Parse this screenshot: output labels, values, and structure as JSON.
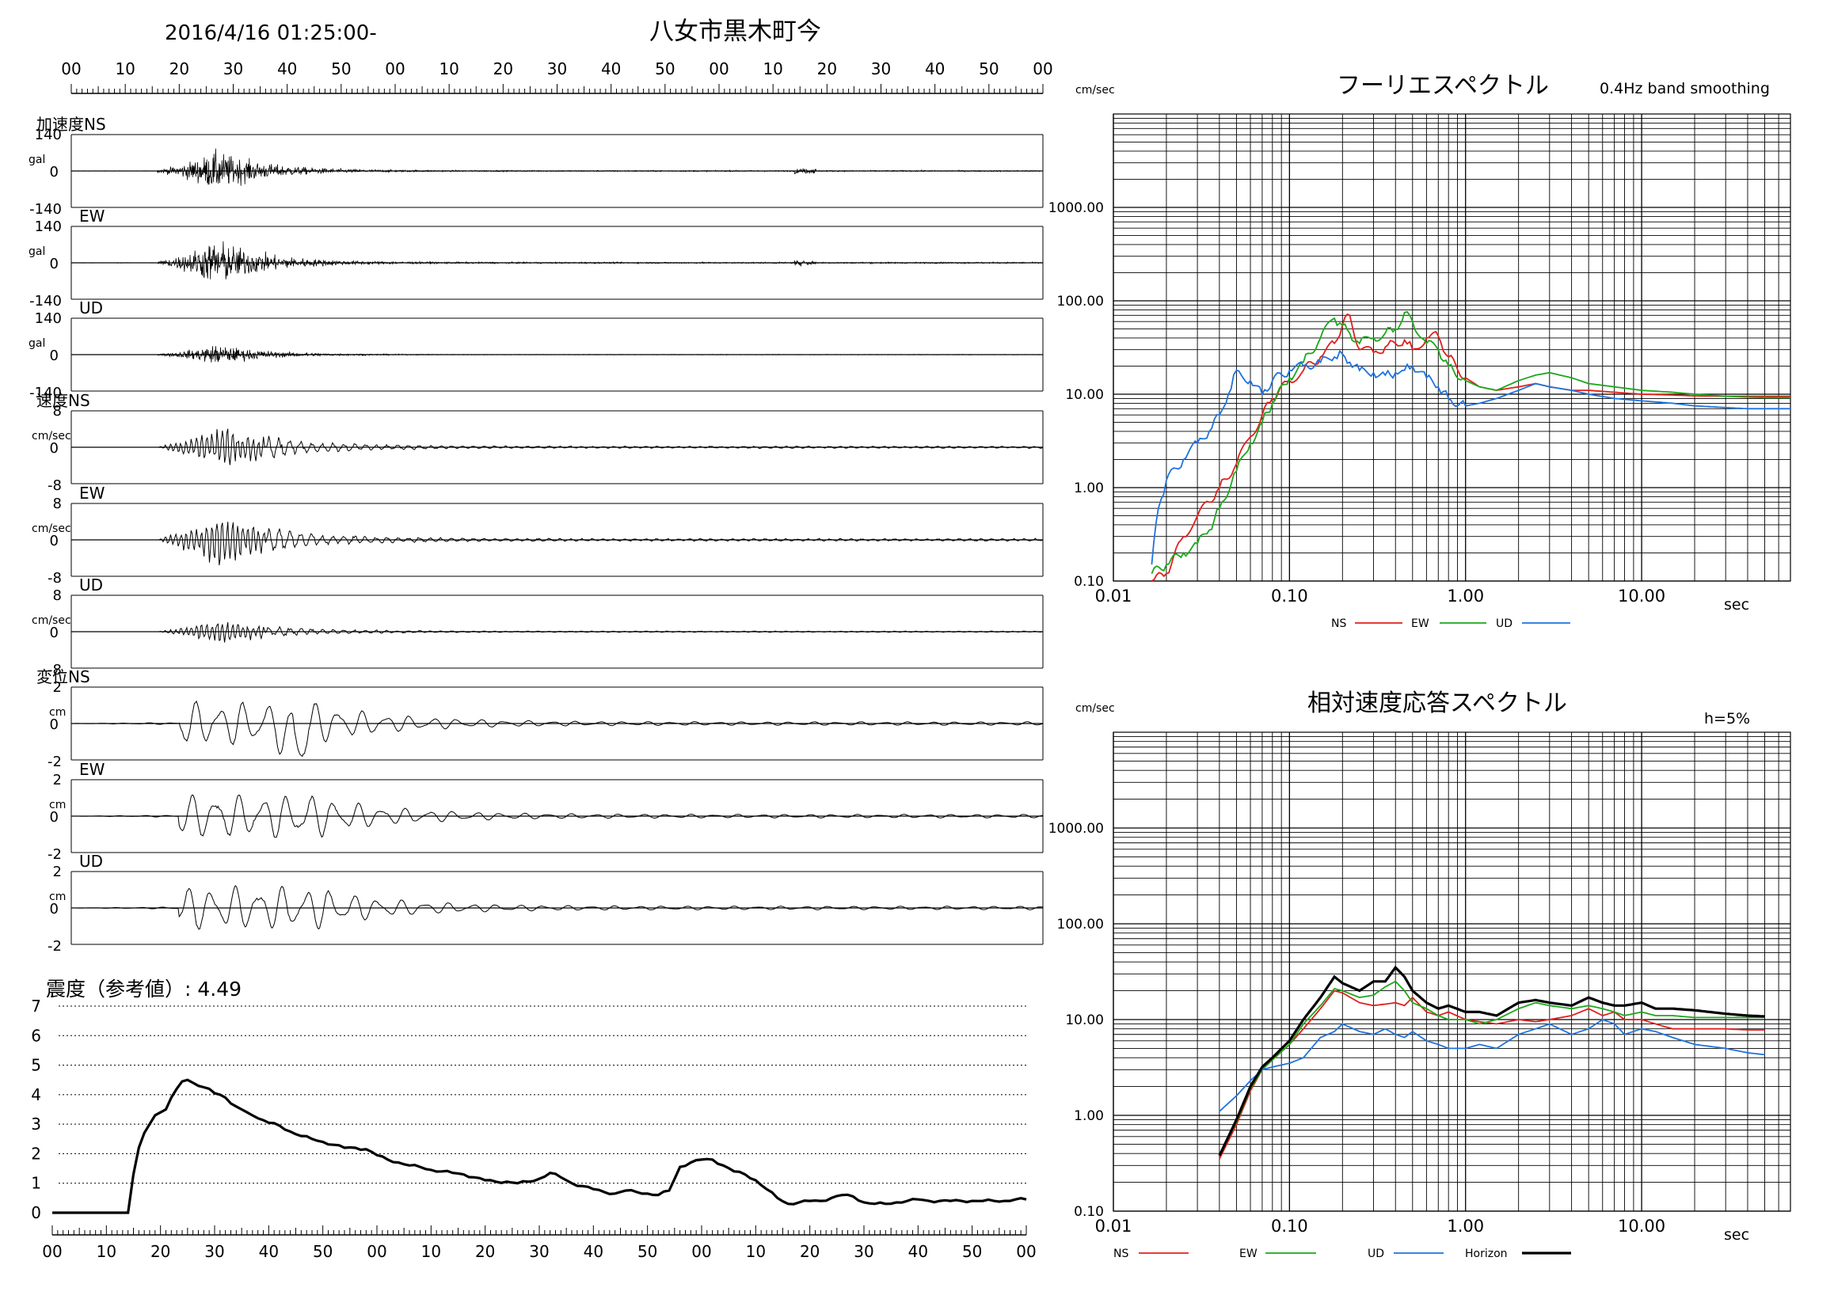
{
  "header": {
    "datetime": "2016/4/16 01:25:00-",
    "station": "八女市黒木町今"
  },
  "time_axis_ticks": [
    "00",
    "10",
    "20",
    "30",
    "40",
    "50",
    "00",
    "10",
    "20",
    "30",
    "40",
    "50",
    "00",
    "10",
    "20",
    "30",
    "40",
    "50",
    "00"
  ],
  "waveforms": {
    "group_labels": {
      "acceleration": "加速度",
      "velocity": "速度",
      "displacement": "変位"
    },
    "panels": [
      {
        "group": "acceleration",
        "component": "NS",
        "unit": "gal",
        "max": "140",
        "zero": "0",
        "min": "-140"
      },
      {
        "group": "acceleration",
        "component": "EW",
        "unit": "gal",
        "max": "140",
        "zero": "0",
        "min": "-140"
      },
      {
        "group": "acceleration",
        "component": "UD",
        "unit": "gal",
        "max": "140",
        "zero": "0",
        "min": "-140"
      },
      {
        "group": "velocity",
        "component": "NS",
        "unit": "cm/sec",
        "max": "8",
        "zero": "0",
        "min": "-8"
      },
      {
        "group": "velocity",
        "component": "EW",
        "unit": "cm/sec",
        "max": "8",
        "zero": "0",
        "min": "-8"
      },
      {
        "group": "velocity",
        "component": "UD",
        "unit": "cm/sec",
        "max": "8",
        "zero": "0",
        "min": "-8"
      },
      {
        "group": "displacement",
        "component": "NS",
        "unit": "cm",
        "max": "2",
        "zero": "0",
        "min": "-2"
      },
      {
        "group": "displacement",
        "component": "EW",
        "unit": "cm",
        "max": "2",
        "zero": "0",
        "min": "-2"
      },
      {
        "group": "displacement",
        "component": "UD",
        "unit": "cm",
        "max": "2",
        "zero": "0",
        "min": "-2"
      }
    ]
  },
  "intensity": {
    "title": "震度（参考値）: 4.49",
    "y_ticks": [
      "7",
      "6",
      "5",
      "4",
      "3",
      "2",
      "1",
      "0"
    ]
  },
  "chart_data": [
    {
      "type": "line",
      "title": "震度（参考値）: 4.49",
      "xlabel": "",
      "ylabel": "",
      "ylim": [
        0,
        7
      ],
      "xlim": [
        0,
        180
      ],
      "x_unit": "seconds from 01:25:00",
      "x_tick_labels": [
        "00",
        "10",
        "20",
        "30",
        "40",
        "50",
        "00",
        "10",
        "20",
        "30",
        "40",
        "50",
        "00",
        "10",
        "20",
        "30",
        "40",
        "50",
        "00"
      ],
      "series": [
        {
          "x": [
            0,
            14,
            15,
            16,
            17,
            18,
            19,
            20,
            21,
            22,
            23,
            24,
            25,
            26,
            27,
            28,
            29,
            30,
            31,
            32,
            33,
            34,
            35,
            36,
            37,
            38,
            40,
            42,
            44,
            46,
            48,
            50,
            52,
            54,
            56,
            58,
            60,
            62,
            64,
            66,
            68,
            70,
            72,
            74,
            76,
            78,
            80,
            82,
            84,
            86,
            88,
            90,
            92,
            94,
            96,
            98,
            100,
            102,
            104,
            106,
            108,
            110,
            112,
            114,
            116,
            118,
            120,
            122,
            124,
            126,
            128,
            130,
            132,
            134,
            136,
            138,
            140,
            142,
            144,
            146,
            148,
            150,
            152,
            154,
            156,
            158,
            160,
            162,
            164,
            166,
            168,
            170,
            172,
            174,
            176,
            178,
            180
          ],
          "y": [
            0,
            0,
            1.3,
            2.2,
            2.7,
            3.0,
            3.3,
            3.4,
            3.5,
            3.9,
            4.2,
            4.45,
            4.5,
            4.4,
            4.3,
            4.25,
            4.2,
            4.05,
            4.0,
            3.9,
            3.7,
            3.6,
            3.5,
            3.4,
            3.3,
            3.2,
            3.05,
            2.95,
            2.75,
            2.6,
            2.5,
            2.4,
            2.3,
            2.2,
            2.2,
            2.15,
            1.95,
            1.8,
            1.7,
            1.6,
            1.55,
            1.45,
            1.4,
            1.35,
            1.3,
            1.2,
            1.1,
            1.05,
            1.05,
            1.0,
            1.05,
            1.15,
            1.35,
            1.2,
            1.0,
            0.9,
            0.8,
            0.7,
            0.65,
            0.75,
            0.7,
            0.65,
            0.6,
            0.75,
            1.55,
            1.7,
            1.8,
            1.8,
            1.6,
            1.4,
            1.3,
            1.1,
            0.8,
            0.5,
            0.3,
            0.35,
            0.4,
            0.4,
            0.5,
            0.6,
            0.55,
            0.35,
            0.3,
            0.3,
            0.35,
            0.4,
            0.45,
            0.4,
            0.4,
            0.4,
            0.4,
            0.4,
            0.4,
            0.4,
            0.4,
            0.45,
            0.45
          ]
        }
      ]
    },
    {
      "type": "line",
      "title": "フーリエスペクトル",
      "subtitle": "0.4Hz band smoothing",
      "xlabel": "sec",
      "ylabel": "cm/sec",
      "x_scale": "log",
      "y_scale": "log",
      "xlim": [
        0.01,
        70
      ],
      "ylim": [
        0.1,
        10000
      ],
      "x_tick_labels": [
        "0.01",
        "0.10",
        "1.00",
        "10.00"
      ],
      "y_tick_labels": [
        "1000.00",
        "100.00",
        "10.00",
        "1.00",
        "0.10"
      ],
      "legend": "bottom",
      "series": [
        {
          "name": "NS",
          "color": "#e0201c",
          "x": [
            0.0165,
            0.02,
            0.025,
            0.03,
            0.035,
            0.04,
            0.05,
            0.06,
            0.07,
            0.08,
            0.1,
            0.12,
            0.15,
            0.18,
            0.2,
            0.22,
            0.25,
            0.3,
            0.35,
            0.4,
            0.45,
            0.5,
            0.6,
            0.7,
            0.8,
            1.0,
            1.2,
            1.5,
            2.0,
            2.5,
            3.0,
            4.0,
            5.0,
            7.0,
            10.0,
            15.0,
            20.0,
            30.0,
            40.0,
            50.0,
            60.0,
            70.0
          ],
          "y": [
            0.1,
            0.12,
            0.3,
            0.5,
            0.7,
            1.0,
            1.8,
            3.5,
            6.0,
            9.0,
            14,
            18,
            25,
            35,
            55,
            70,
            30,
            28,
            32,
            35,
            38,
            30,
            40,
            42,
            25,
            15,
            12,
            11,
            12,
            13,
            12,
            11,
            11,
            10.5,
            10,
            9.8,
            9.6,
            9.5,
            9.5,
            9.5,
            9.5,
            9.5
          ]
        },
        {
          "name": "EW",
          "color": "#1ba81a",
          "x": [
            0.0165,
            0.02,
            0.025,
            0.03,
            0.035,
            0.04,
            0.05,
            0.06,
            0.07,
            0.08,
            0.1,
            0.12,
            0.15,
            0.18,
            0.2,
            0.22,
            0.25,
            0.3,
            0.35,
            0.4,
            0.45,
            0.5,
            0.6,
            0.7,
            0.8,
            1.0,
            1.2,
            1.5,
            2.0,
            2.5,
            3.0,
            4.0,
            5.0,
            7.0,
            10.0,
            15.0,
            20.0,
            30.0,
            40.0,
            50.0,
            60.0,
            70.0
          ],
          "y": [
            0.12,
            0.15,
            0.2,
            0.25,
            0.35,
            0.6,
            1.5,
            3.0,
            5.0,
            8.0,
            15,
            22,
            40,
            65,
            55,
            45,
            35,
            40,
            45,
            50,
            75,
            60,
            35,
            30,
            20,
            14,
            12,
            11,
            14,
            16,
            17,
            15,
            13,
            12,
            11,
            10.5,
            10,
            9.5,
            9.3,
            9.2,
            9.2,
            9.2
          ]
        },
        {
          "name": "UD",
          "color": "#1e73e0",
          "x": [
            0.0165,
            0.018,
            0.02,
            0.025,
            0.03,
            0.035,
            0.04,
            0.045,
            0.05,
            0.06,
            0.07,
            0.08,
            0.1,
            0.12,
            0.15,
            0.18,
            0.2,
            0.22,
            0.25,
            0.3,
            0.35,
            0.4,
            0.45,
            0.5,
            0.6,
            0.7,
            0.8,
            1.0,
            1.2,
            1.5,
            2.0,
            2.5,
            3.0,
            4.0,
            5.0,
            7.0,
            10.0,
            15.0,
            20.0,
            30.0,
            40.0,
            50.0,
            60.0,
            70.0
          ],
          "y": [
            0.15,
            0.6,
            1.2,
            2.0,
            3.0,
            4.0,
            6.0,
            10,
            18,
            14,
            10,
            14,
            18,
            20,
            22,
            25,
            27,
            22,
            18,
            17,
            16,
            17,
            18,
            20,
            15,
            12,
            9,
            7.5,
            8,
            9,
            11,
            13,
            12,
            11,
            10,
            9,
            8.5,
            8.0,
            7.5,
            7.2,
            7.0,
            7.0,
            7.0,
            7.0
          ]
        }
      ]
    },
    {
      "type": "line",
      "title": "相対速度応答スペクトル",
      "subtitle": "h=5%",
      "xlabel": "sec",
      "ylabel": "cm/sec",
      "x_scale": "log",
      "y_scale": "log",
      "xlim": [
        0.01,
        70
      ],
      "ylim": [
        0.1,
        10000
      ],
      "x_tick_labels": [
        "0.01",
        "0.10",
        "1.00",
        "10.00"
      ],
      "y_tick_labels": [
        "1000.00",
        "100.00",
        "10.00",
        "1.00",
        "0.10"
      ],
      "legend": "bottom",
      "series": [
        {
          "name": "NS",
          "color": "#e0201c",
          "x": [
            0.04,
            0.05,
            0.06,
            0.07,
            0.08,
            0.1,
            0.12,
            0.15,
            0.18,
            0.2,
            0.25,
            0.3,
            0.35,
            0.4,
            0.45,
            0.5,
            0.6,
            0.7,
            0.8,
            1.0,
            1.2,
            1.5,
            2.0,
            2.5,
            3.0,
            4.0,
            5.0,
            6.0,
            7.0,
            8.0,
            10.0,
            12.0,
            15.0,
            20.0,
            30.0,
            40.0,
            50.0
          ],
          "y": [
            0.35,
            0.8,
            1.8,
            3.0,
            3.8,
            5.5,
            8,
            13,
            20,
            19,
            15,
            14,
            14.5,
            15,
            14,
            17,
            12,
            11,
            12,
            10,
            9.5,
            9,
            10,
            9.5,
            10,
            11,
            13,
            11,
            12,
            10,
            10,
            9,
            8,
            8,
            8,
            7.8,
            7.8
          ]
        },
        {
          "name": "EW",
          "color": "#1ba81a",
          "x": [
            0.04,
            0.05,
            0.06,
            0.07,
            0.08,
            0.1,
            0.12,
            0.15,
            0.18,
            0.2,
            0.25,
            0.3,
            0.35,
            0.4,
            0.45,
            0.5,
            0.6,
            0.7,
            0.8,
            1.0,
            1.2,
            1.5,
            2.0,
            2.5,
            3.0,
            4.0,
            5.0,
            6.0,
            7.0,
            8.0,
            10.0,
            12.0,
            15.0,
            20.0,
            30.0,
            40.0,
            50.0
          ],
          "y": [
            0.38,
            0.85,
            1.9,
            3.0,
            3.8,
            5.5,
            9,
            14,
            21,
            20,
            17,
            18,
            22,
            25,
            20,
            15,
            13,
            11,
            10,
            10,
            9,
            10,
            13,
            15,
            14,
            13,
            14,
            13,
            12,
            11,
            12,
            11,
            11,
            10.5,
            10.5,
            10.5,
            10.5
          ]
        },
        {
          "name": "UD",
          "color": "#1e73e0",
          "x": [
            0.04,
            0.05,
            0.06,
            0.07,
            0.08,
            0.1,
            0.12,
            0.15,
            0.18,
            0.2,
            0.25,
            0.3,
            0.35,
            0.4,
            0.45,
            0.5,
            0.6,
            0.7,
            0.8,
            1.0,
            1.2,
            1.5,
            2.0,
            2.5,
            3.0,
            4.0,
            5.0,
            6.0,
            7.0,
            8.0,
            10.0,
            12.0,
            15.0,
            20.0,
            30.0,
            40.0,
            50.0
          ],
          "y": [
            1.1,
            1.6,
            2.3,
            3.0,
            3.2,
            3.5,
            4.0,
            6.5,
            7.5,
            9.0,
            7.5,
            7.0,
            8.0,
            7.0,
            6.5,
            7.5,
            6.0,
            5.5,
            5.0,
            5.0,
            5.5,
            5.0,
            7.0,
            8.0,
            9.0,
            7.0,
            8.0,
            10,
            9.0,
            7.0,
            8.0,
            7.5,
            6.5,
            5.5,
            5.0,
            4.5,
            4.3
          ]
        },
        {
          "name": "Horizon",
          "color": "#000000",
          "x": [
            0.04,
            0.05,
            0.06,
            0.07,
            0.08,
            0.1,
            0.12,
            0.15,
            0.18,
            0.2,
            0.25,
            0.3,
            0.35,
            0.4,
            0.45,
            0.5,
            0.6,
            0.7,
            0.8,
            1.0,
            1.2,
            1.5,
            2.0,
            2.5,
            3.0,
            4.0,
            5.0,
            6.0,
            7.0,
            8.0,
            10.0,
            12.0,
            15.0,
            20.0,
            30.0,
            40.0,
            50.0
          ],
          "y": [
            0.38,
            0.9,
            2.0,
            3.2,
            4.0,
            6.0,
            10,
            17,
            28,
            24,
            20,
            25,
            25,
            35,
            28,
            20,
            15,
            13,
            14,
            12,
            12,
            11,
            15,
            16,
            15,
            14,
            17,
            15,
            14,
            14,
            15,
            13,
            13,
            12.5,
            11.5,
            11,
            10.8
          ]
        }
      ]
    }
  ]
}
